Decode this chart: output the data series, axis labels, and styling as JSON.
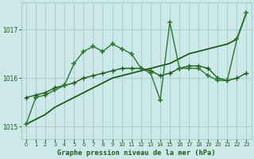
{
  "title": "Graphe pression niveau de la mer (hPa)",
  "background_color": "#cce8e8",
  "grid_color": "#a8cccc",
  "line_color_dark": "#1a5c1a",
  "line_color_mid": "#2a7a2a",
  "xlim": [
    -0.5,
    23.5
  ],
  "ylim": [
    1014.75,
    1017.55
  ],
  "yticks": [
    1015,
    1016,
    1017
  ],
  "xticks": [
    0,
    1,
    2,
    3,
    4,
    5,
    6,
    7,
    8,
    9,
    10,
    11,
    12,
    13,
    14,
    15,
    16,
    17,
    18,
    19,
    20,
    21,
    22,
    23
  ],
  "series_trend": [
    1015.05,
    1015.15,
    1015.25,
    1015.4,
    1015.5,
    1015.6,
    1015.7,
    1015.8,
    1015.9,
    1016.0,
    1016.05,
    1016.1,
    1016.15,
    1016.2,
    1016.25,
    1016.3,
    1016.4,
    1016.5,
    1016.55,
    1016.6,
    1016.65,
    1016.7,
    1016.8,
    1017.35
  ],
  "series_medium": [
    1015.6,
    1015.65,
    1015.7,
    1015.8,
    1015.85,
    1015.9,
    1016.0,
    1016.05,
    1016.1,
    1016.15,
    1016.2,
    1016.2,
    1016.2,
    1016.15,
    1016.05,
    1016.1,
    1016.2,
    1016.25,
    1016.25,
    1016.2,
    1016.0,
    1015.95,
    1016.0,
    1016.1
  ],
  "series_jagged": [
    1015.05,
    1015.6,
    1015.65,
    1015.75,
    1015.85,
    1016.3,
    1016.55,
    1016.65,
    1016.55,
    1016.7,
    1016.6,
    1016.5,
    1016.2,
    1016.1,
    1015.55,
    1017.15,
    1016.2,
    1016.2,
    1016.2,
    1016.05,
    1015.95,
    1015.95,
    1016.8,
    1017.35
  ]
}
